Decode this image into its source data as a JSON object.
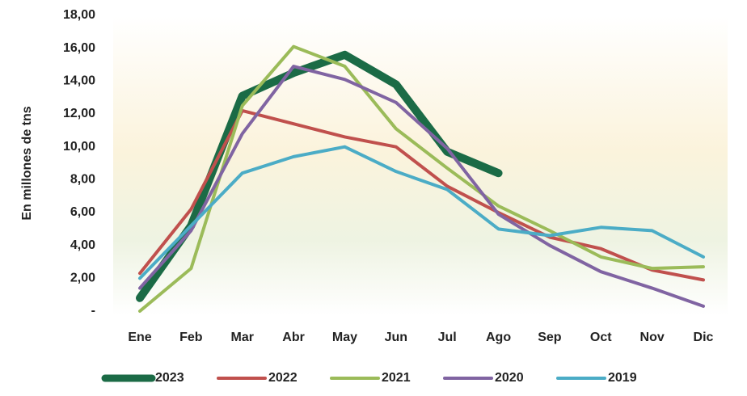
{
  "chart_data": {
    "type": "line",
    "y_label": "En millones de tns",
    "categories": [
      "Ene",
      "Feb",
      "Mar",
      "Abr",
      "May",
      "Jun",
      "Jul",
      "Ago",
      "Sep",
      "Oct",
      "Nov",
      "Dic"
    ],
    "ylim": [
      0,
      18
    ],
    "yticks": [
      {
        "value": 0,
        "label": "-"
      },
      {
        "value": 2,
        "label": "2,00"
      },
      {
        "value": 4,
        "label": "4,00"
      },
      {
        "value": 6,
        "label": "6,00"
      },
      {
        "value": 8,
        "label": "8,00"
      },
      {
        "value": 10,
        "label": "10,00"
      },
      {
        "value": 12,
        "label": "12,00"
      },
      {
        "value": 14,
        "label": "14,00"
      },
      {
        "value": 16,
        "label": "16,00"
      },
      {
        "value": 18,
        "label": "18,00"
      }
    ],
    "grid": false,
    "legend": "bottom",
    "series": [
      {
        "name": "2023",
        "color": "#1b6b46",
        "values": [
          0.8,
          5.2,
          13.1,
          14.5,
          15.6,
          13.8,
          9.7,
          8.4,
          null,
          null,
          null,
          null
        ]
      },
      {
        "name": "2022",
        "color": "#c0504d",
        "values": [
          2.3,
          6.2,
          12.2,
          11.4,
          10.6,
          10.0,
          7.6,
          6.0,
          4.5,
          3.8,
          2.5,
          1.9
        ]
      },
      {
        "name": "2021",
        "color": "#9bbb59",
        "values": [
          0,
          2.6,
          12.5,
          16.1,
          14.9,
          11.1,
          8.7,
          6.4,
          4.9,
          3.3,
          2.6,
          2.7
        ]
      },
      {
        "name": "2020",
        "color": "#8064a2",
        "values": [
          1.4,
          4.9,
          10.8,
          14.9,
          14.1,
          12.7,
          9.9,
          5.9,
          4.0,
          2.4,
          1.4,
          0.3
        ]
      },
      {
        "name": "2019",
        "color": "#4bacc6",
        "values": [
          2.0,
          5.2,
          8.4,
          9.4,
          10.0,
          8.5,
          7.4,
          5.0,
          4.6,
          5.1,
          4.9,
          3.3
        ]
      }
    ]
  }
}
